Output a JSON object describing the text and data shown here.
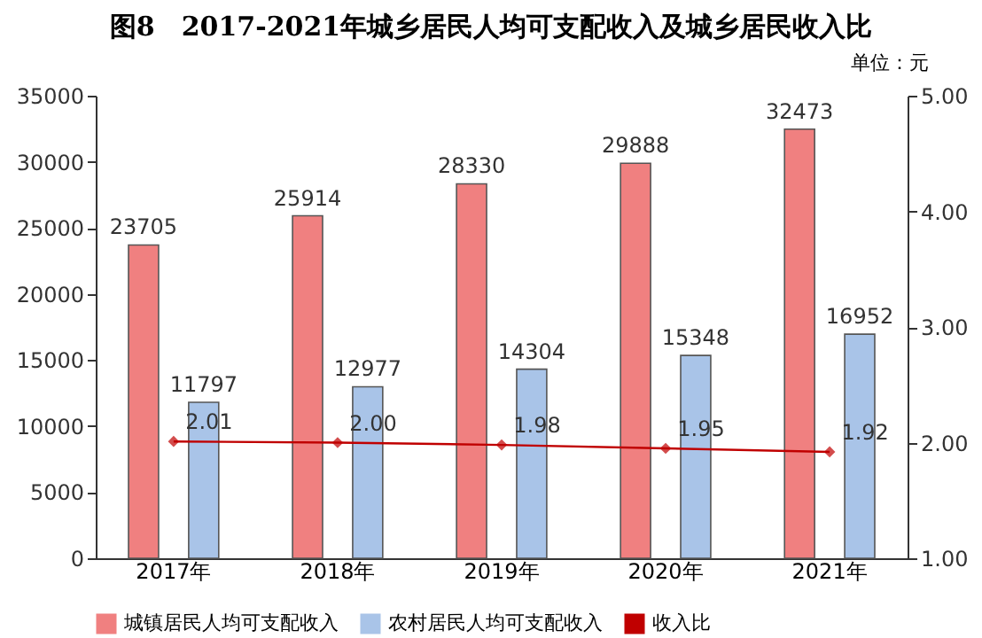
{
  "chart_data": {
    "type": "bar",
    "title": "图8　2017-2021年城乡居民人均可支配收入及城乡居民收入比",
    "annotations": [
      "单位：元"
    ],
    "categories": [
      "2017年",
      "2018年",
      "2019年",
      "2020年",
      "2021年"
    ],
    "series": [
      {
        "name": "城镇居民人均可支配收入",
        "color": "#f08080",
        "values": [
          23705,
          25914,
          28330,
          29888,
          32473
        ]
      },
      {
        "name": "农村居民人均可支配收入",
        "color": "#a9c4e8",
        "values": [
          11797,
          12977,
          14304,
          15348,
          16952
        ]
      },
      {
        "name": "收入比",
        "type": "line",
        "axis": "y2",
        "color": "#c00000",
        "values": [
          2.01,
          2.0,
          1.98,
          1.95,
          1.92
        ],
        "value_labels": [
          "2.01",
          "2.00",
          "1.98",
          "1.95",
          "1.92"
        ]
      }
    ],
    "ylim": [
      0,
      35000
    ],
    "yticks": [
      0,
      5000,
      10000,
      15000,
      20000,
      25000,
      30000,
      35000
    ],
    "y2lim": [
      1,
      5
    ],
    "y2ticks": [
      {
        "value": 1,
        "label": "1.00"
      },
      {
        "value": 2,
        "label": "2.00"
      },
      {
        "value": 3,
        "label": "3.00"
      },
      {
        "value": 4,
        "label": "4.00"
      },
      {
        "value": 5,
        "label": "5.00"
      }
    ],
    "data_labels": true,
    "legend": "bottom",
    "grid": false,
    "marker": "diamond"
  }
}
